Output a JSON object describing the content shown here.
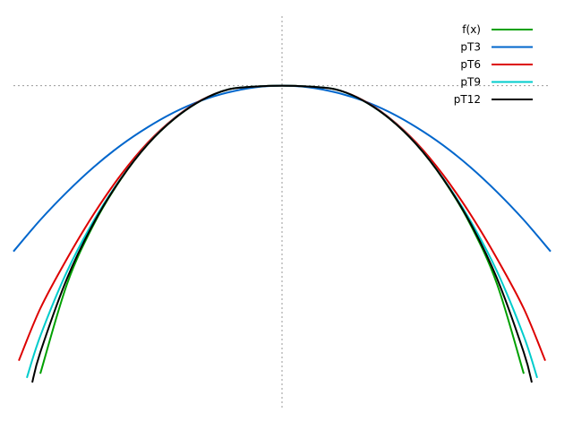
{
  "chart_data": {
    "type": "line",
    "title": "",
    "xlabel": "",
    "ylabel": "",
    "xlim": [
      -1.0,
      1.0
    ],
    "ylim": [
      -1.4,
      0.3
    ],
    "grid": "zero axes only (dotted)",
    "legend_position": "top-right",
    "series": [
      {
        "name": "f(x)",
        "color": "#00a000",
        "x": [
          -0.9,
          -0.8,
          -0.7,
          -0.6,
          -0.5,
          -0.4,
          -0.3,
          -0.2,
          -0.1,
          0.0,
          0.1,
          0.2,
          0.3,
          0.4,
          0.5,
          0.6,
          0.7,
          0.8,
          0.9
        ],
        "y": [
          -1.242,
          -0.854,
          -0.596,
          -0.403,
          -0.253,
          -0.142,
          -0.063,
          -0.016,
          -0.004,
          0.0,
          -0.004,
          -0.016,
          -0.063,
          -0.142,
          -0.253,
          -0.403,
          -0.596,
          -0.854,
          -1.242
        ]
      },
      {
        "name": "pT3",
        "color": "#0066cc",
        "x": [
          -1.0,
          -0.9,
          -0.8,
          -0.7,
          -0.6,
          -0.5,
          -0.4,
          -0.3,
          -0.2,
          -0.1,
          0.0,
          0.1,
          0.2,
          0.3,
          0.4,
          0.5,
          0.6,
          0.7,
          0.8,
          0.9,
          1.0
        ],
        "y": [
          -0.715,
          -0.579,
          -0.458,
          -0.35,
          -0.257,
          -0.179,
          -0.114,
          -0.064,
          -0.029,
          -0.007,
          0.0,
          -0.007,
          -0.029,
          -0.064,
          -0.114,
          -0.179,
          -0.257,
          -0.35,
          -0.458,
          -0.579,
          -0.715
        ]
      },
      {
        "name": "pT6",
        "color": "#dd0000",
        "x": [
          -0.98,
          -0.9,
          -0.8,
          -0.7,
          -0.6,
          -0.5,
          -0.4,
          -0.3,
          -0.2,
          -0.1,
          0.0,
          0.1,
          0.2,
          0.3,
          0.4,
          0.5,
          0.6,
          0.7,
          0.8,
          0.9,
          0.98
        ],
        "y": [
          -1.186,
          -0.961,
          -0.745,
          -0.552,
          -0.385,
          -0.246,
          -0.139,
          -0.062,
          -0.016,
          -0.004,
          0.0,
          -0.004,
          -0.016,
          -0.062,
          -0.139,
          -0.246,
          -0.385,
          -0.552,
          -0.745,
          -0.961,
          -1.186
        ]
      },
      {
        "name": "pT9",
        "color": "#00cccc",
        "x": [
          -0.95,
          -0.9,
          -0.8,
          -0.7,
          -0.6,
          -0.5,
          -0.4,
          -0.3,
          -0.2,
          -0.1,
          0.0,
          0.1,
          0.2,
          0.3,
          0.4,
          0.5,
          0.6,
          0.7,
          0.8,
          0.9,
          0.95
        ],
        "y": [
          -1.26,
          -1.08,
          -0.8,
          -0.58,
          -0.4,
          -0.252,
          -0.141,
          -0.063,
          -0.016,
          -0.004,
          0.0,
          -0.004,
          -0.016,
          -0.063,
          -0.141,
          -0.252,
          -0.4,
          -0.58,
          -0.8,
          -1.08,
          -1.26
        ]
      },
      {
        "name": "pT12",
        "color": "#000000",
        "x": [
          -0.93,
          -0.9,
          -0.8,
          -0.7,
          -0.6,
          -0.5,
          -0.4,
          -0.3,
          -0.2,
          -0.1,
          0.0,
          0.1,
          0.2,
          0.3,
          0.4,
          0.5,
          0.6,
          0.7,
          0.8,
          0.9,
          0.93
        ],
        "y": [
          -1.28,
          -1.15,
          -0.83,
          -0.59,
          -0.402,
          -0.253,
          -0.142,
          -0.063,
          -0.016,
          -0.004,
          0.0,
          -0.004,
          -0.016,
          -0.063,
          -0.142,
          -0.253,
          -0.402,
          -0.59,
          -0.83,
          -1.15,
          -1.28
        ]
      }
    ]
  }
}
